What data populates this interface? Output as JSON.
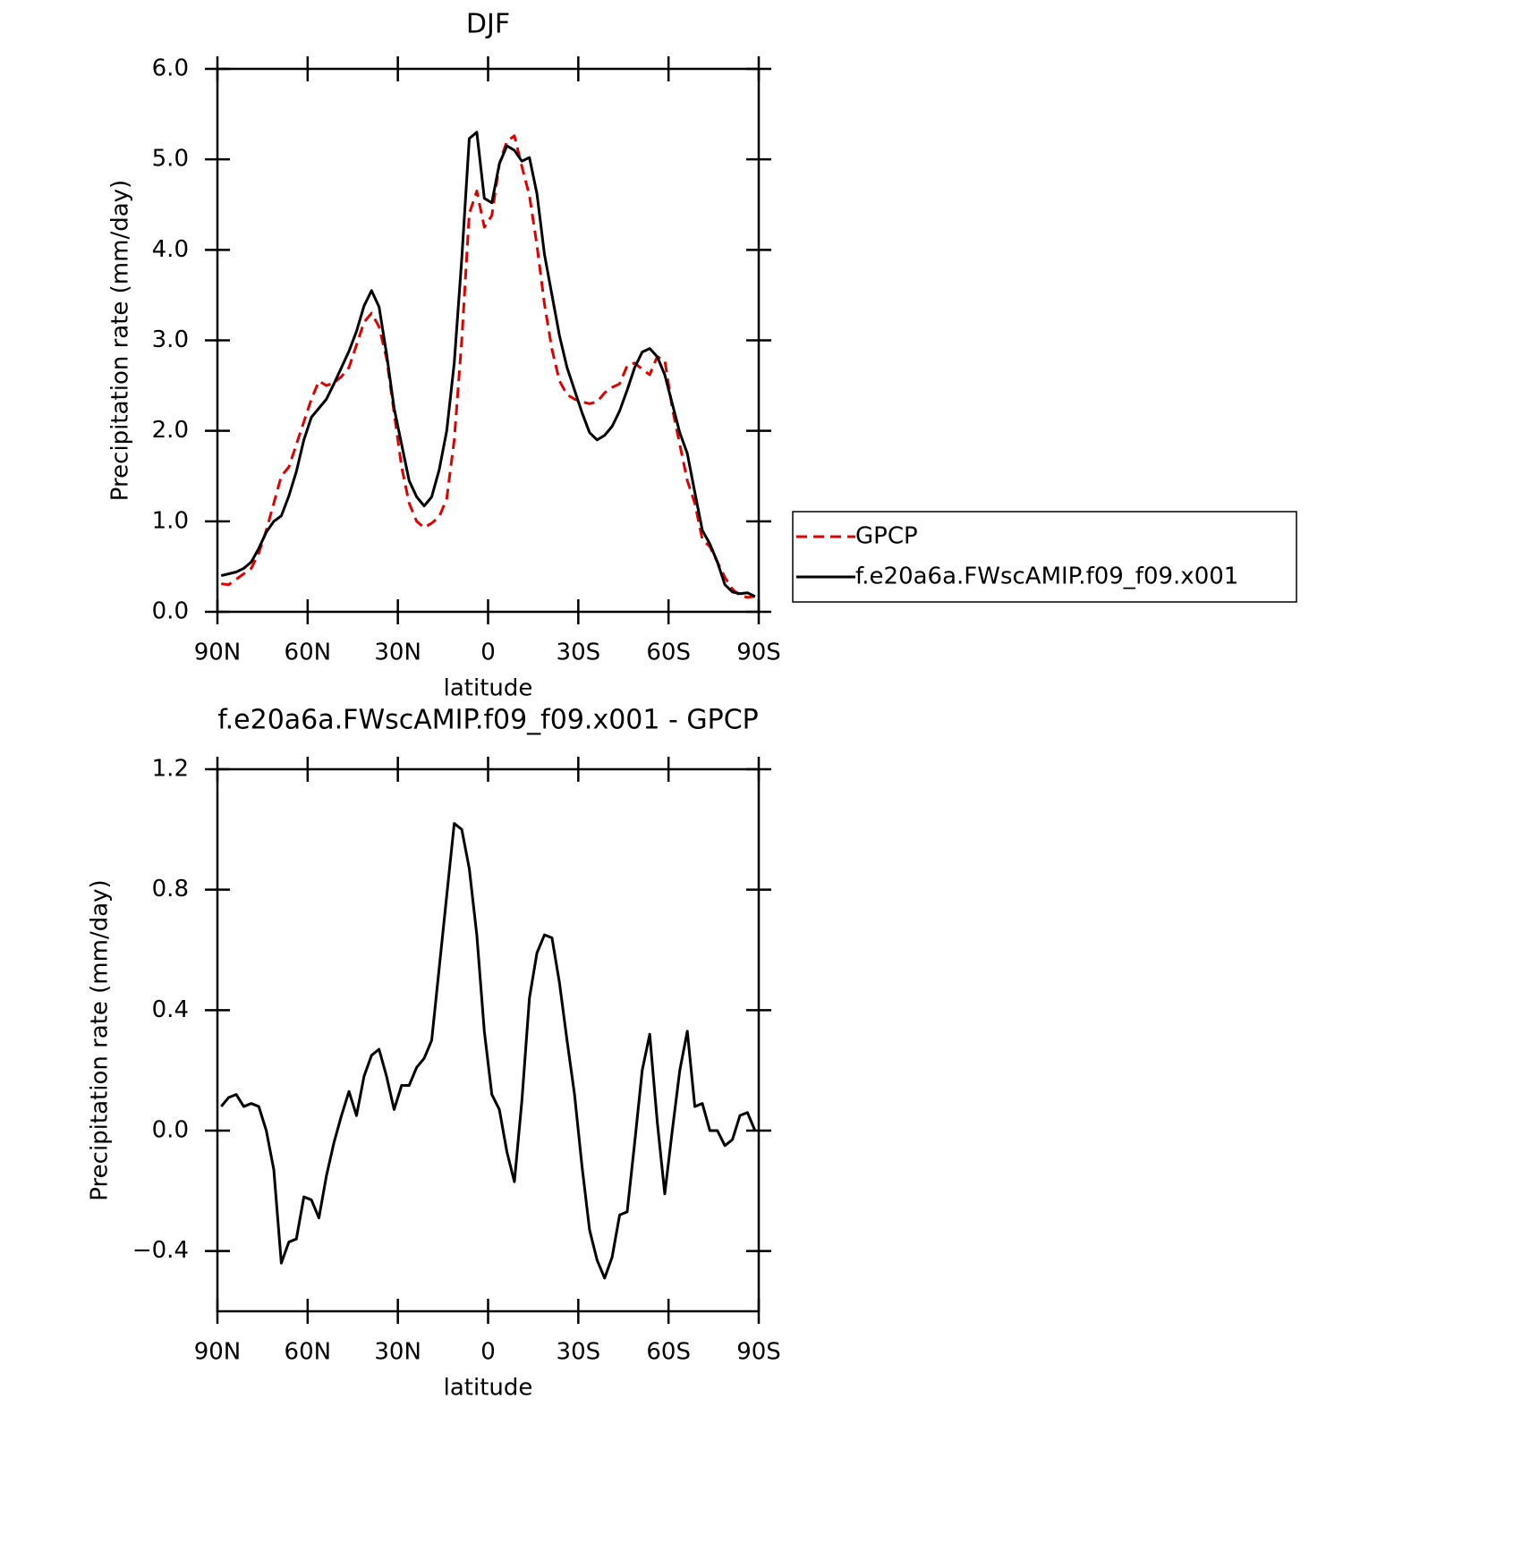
{
  "chart_data": [
    {
      "type": "line",
      "title": "DJF",
      "xlabel": "latitude",
      "ylabel": "Precipitation rate (mm/day)",
      "x": [
        88.75,
        86.25,
        83.75,
        81.25,
        78.75,
        76.25,
        73.75,
        71.25,
        68.75,
        66.25,
        63.75,
        61.25,
        58.75,
        56.25,
        53.75,
        51.25,
        48.75,
        46.25,
        43.75,
        41.25,
        38.75,
        36.25,
        33.75,
        31.25,
        28.75,
        26.25,
        23.75,
        21.25,
        18.75,
        16.25,
        13.75,
        11.25,
        8.75,
        6.25,
        3.75,
        1.25,
        -1.25,
        -3.75,
        -6.25,
        -8.75,
        -11.25,
        -13.75,
        -16.25,
        -18.75,
        -21.25,
        -23.75,
        -26.25,
        -28.75,
        -31.25,
        -33.75,
        -36.25,
        -38.75,
        -41.25,
        -43.75,
        -46.25,
        -48.75,
        -51.25,
        -53.75,
        -56.25,
        -58.75,
        -61.25,
        -63.75,
        -66.25,
        -68.75,
        -71.25,
        -73.75,
        -76.25,
        -78.75,
        -81.25,
        -83.75,
        -86.25,
        -88.75
      ],
      "series": [
        {
          "name": "GPCP",
          "color": "#e00000",
          "dashed": true,
          "values": [
            0.31,
            0.3,
            0.36,
            0.42,
            0.48,
            0.65,
            0.9,
            1.2,
            1.5,
            1.6,
            1.85,
            2.1,
            2.35,
            2.55,
            2.5,
            2.53,
            2.6,
            2.7,
            2.95,
            3.2,
            3.3,
            3.15,
            2.8,
            2.2,
            1.6,
            1.2,
            1.0,
            0.93,
            0.98,
            1.05,
            1.25,
            1.9,
            3.0,
            4.4,
            4.65,
            4.25,
            4.38,
            4.95,
            5.2,
            5.26,
            4.92,
            4.6,
            4.05,
            3.4,
            2.9,
            2.55,
            2.4,
            2.35,
            2.32,
            2.3,
            2.32,
            2.42,
            2.48,
            2.52,
            2.72,
            2.75,
            2.68,
            2.62,
            2.82,
            2.78,
            2.25,
            1.85,
            1.45,
            1.2,
            0.8,
            0.72,
            0.55,
            0.38,
            0.25,
            0.18,
            0.16,
            0.17
          ]
        },
        {
          "name": "f.e20a6a.FWscAMIP.f09_f09.x001",
          "color": "#000000",
          "dashed": false,
          "values": [
            0.4,
            0.42,
            0.44,
            0.48,
            0.55,
            0.7,
            0.88,
            1.0,
            1.06,
            1.28,
            1.55,
            1.9,
            2.15,
            2.25,
            2.35,
            2.52,
            2.7,
            2.88,
            3.1,
            3.38,
            3.55,
            3.37,
            2.85,
            2.25,
            1.85,
            1.45,
            1.27,
            1.17,
            1.27,
            1.57,
            2.0,
            2.75,
            3.9,
            5.23,
            5.3,
            4.57,
            4.52,
            4.95,
            5.15,
            5.1,
            4.98,
            5.02,
            4.62,
            3.95,
            3.5,
            3.05,
            2.7,
            2.45,
            2.2,
            1.98,
            1.9,
            1.95,
            2.05,
            2.22,
            2.45,
            2.7,
            2.87,
            2.91,
            2.82,
            2.62,
            2.3,
            1.98,
            1.75,
            1.32,
            0.9,
            0.75,
            0.55,
            0.3,
            0.22,
            0.2,
            0.21,
            0.17
          ]
        }
      ],
      "xlim": [
        90,
        -90
      ],
      "xticks": [
        {
          "value": 90,
          "label": "90N"
        },
        {
          "value": 60,
          "label": "60N"
        },
        {
          "value": 30,
          "label": "30N"
        },
        0,
        {
          "value": -30,
          "label": "30S"
        },
        {
          "value": -60,
          "label": "60S"
        },
        {
          "value": -90,
          "label": "90S"
        }
      ],
      "ylim": [
        0,
        6
      ],
      "yticks": [
        {
          "value": 0,
          "label": "0.0"
        },
        {
          "value": 1,
          "label": "1.0"
        },
        {
          "value": 2,
          "label": "2.0"
        },
        {
          "value": 3,
          "label": "3.0"
        },
        {
          "value": 4,
          "label": "4.0"
        },
        {
          "value": 5,
          "label": "5.0"
        },
        {
          "value": 6,
          "label": "6.0"
        }
      ],
      "legend": true
    },
    {
      "type": "line",
      "title": "f.e20a6a.FWscAMIP.f09_f09.x001 - GPCP",
      "xlabel": "latitude",
      "ylabel": "Precipitation rate (mm/day)",
      "x": [
        88.75,
        86.25,
        83.75,
        81.25,
        78.75,
        76.25,
        73.75,
        71.25,
        68.75,
        66.25,
        63.75,
        61.25,
        58.75,
        56.25,
        53.75,
        51.25,
        48.75,
        46.25,
        43.75,
        41.25,
        38.75,
        36.25,
        33.75,
        31.25,
        28.75,
        26.25,
        23.75,
        21.25,
        18.75,
        16.25,
        13.75,
        11.25,
        8.75,
        6.25,
        3.75,
        1.25,
        -1.25,
        -3.75,
        -6.25,
        -8.75,
        -11.25,
        -13.75,
        -16.25,
        -18.75,
        -21.25,
        -23.75,
        -26.25,
        -28.75,
        -31.25,
        -33.75,
        -36.25,
        -38.75,
        -41.25,
        -43.75,
        -46.25,
        -48.75,
        -51.25,
        -53.75,
        -56.25,
        -58.75,
        -61.25,
        -63.75,
        -66.25,
        -68.75,
        -71.25,
        -73.75,
        -76.25,
        -78.75,
        -81.25,
        -83.75,
        -86.25,
        -88.75
      ],
      "series": [
        {
          "color": "#000000",
          "dashed": false,
          "values": [
            0.08,
            0.11,
            0.12,
            0.08,
            0.09,
            0.08,
            0.0,
            -0.13,
            -0.44,
            -0.37,
            -0.36,
            -0.22,
            -0.23,
            -0.29,
            -0.15,
            -0.04,
            0.05,
            0.13,
            0.05,
            0.18,
            0.25,
            0.27,
            0.18,
            0.07,
            0.15,
            0.15,
            0.21,
            0.24,
            0.3,
            0.54,
            0.78,
            1.02,
            1.0,
            0.87,
            0.65,
            0.33,
            0.12,
            0.07,
            -0.07,
            -0.17,
            0.1,
            0.44,
            0.59,
            0.65,
            0.64,
            0.49,
            0.3,
            0.12,
            -0.12,
            -0.33,
            -0.43,
            -0.49,
            -0.42,
            -0.28,
            -0.27,
            -0.04,
            0.2,
            0.32,
            0.03,
            -0.21,
            0.0,
            0.2,
            0.33,
            0.08,
            0.09,
            0.0,
            0.0,
            -0.05,
            -0.03,
            0.05,
            0.06,
            0.0
          ]
        }
      ],
      "xlim": [
        90,
        -90
      ],
      "xticks": [
        {
          "value": 90,
          "label": "90N"
        },
        {
          "value": 60,
          "label": "60N"
        },
        {
          "value": 30,
          "label": "30N"
        },
        0,
        {
          "value": -30,
          "label": "30S"
        },
        {
          "value": -60,
          "label": "60S"
        },
        {
          "value": -90,
          "label": "90S"
        }
      ],
      "ylim": [
        -0.6,
        1.2
      ],
      "yticks": [
        {
          "value": -0.4,
          "label": "−0.4"
        },
        {
          "value": 0,
          "label": "0.0"
        },
        {
          "value": 0.4,
          "label": "0.4"
        },
        {
          "value": 0.8,
          "label": "0.8"
        },
        {
          "value": 1.2,
          "label": "1.2"
        }
      ],
      "legend": false
    }
  ]
}
